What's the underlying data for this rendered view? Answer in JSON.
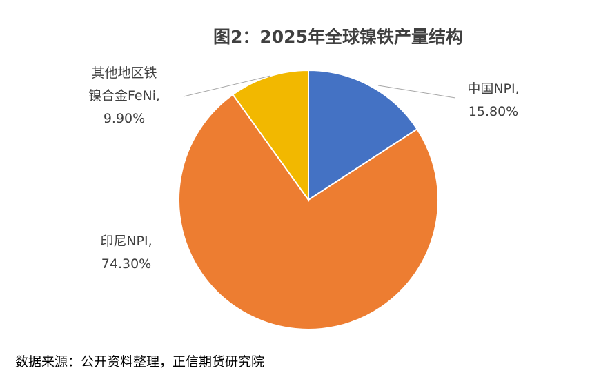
{
  "chart_data": {
    "type": "pie",
    "title": "图2：2025年全球镍铁产量结构",
    "slices": [
      {
        "name": "中国NPI",
        "label_lines": [
          "中国NPI,",
          "15.80%"
        ],
        "value": 15.8,
        "color": "#4472C4"
      },
      {
        "name": "印尼NPI",
        "label_lines": [
          "印尼NPI,",
          "74.30%"
        ],
        "value": 74.3,
        "color": "#ED7D31"
      },
      {
        "name": "其他地区铁镍合金FeNi",
        "label_lines": [
          "其他地区铁",
          "镍合金FeNi,",
          "9.90%"
        ],
        "value": 9.9,
        "color": "#F2B800"
      }
    ],
    "start_angle": "12 o'clock",
    "direction": "clockwise",
    "legend": "none"
  },
  "source": "数据来源：公开资料整理，正信期货研究院"
}
